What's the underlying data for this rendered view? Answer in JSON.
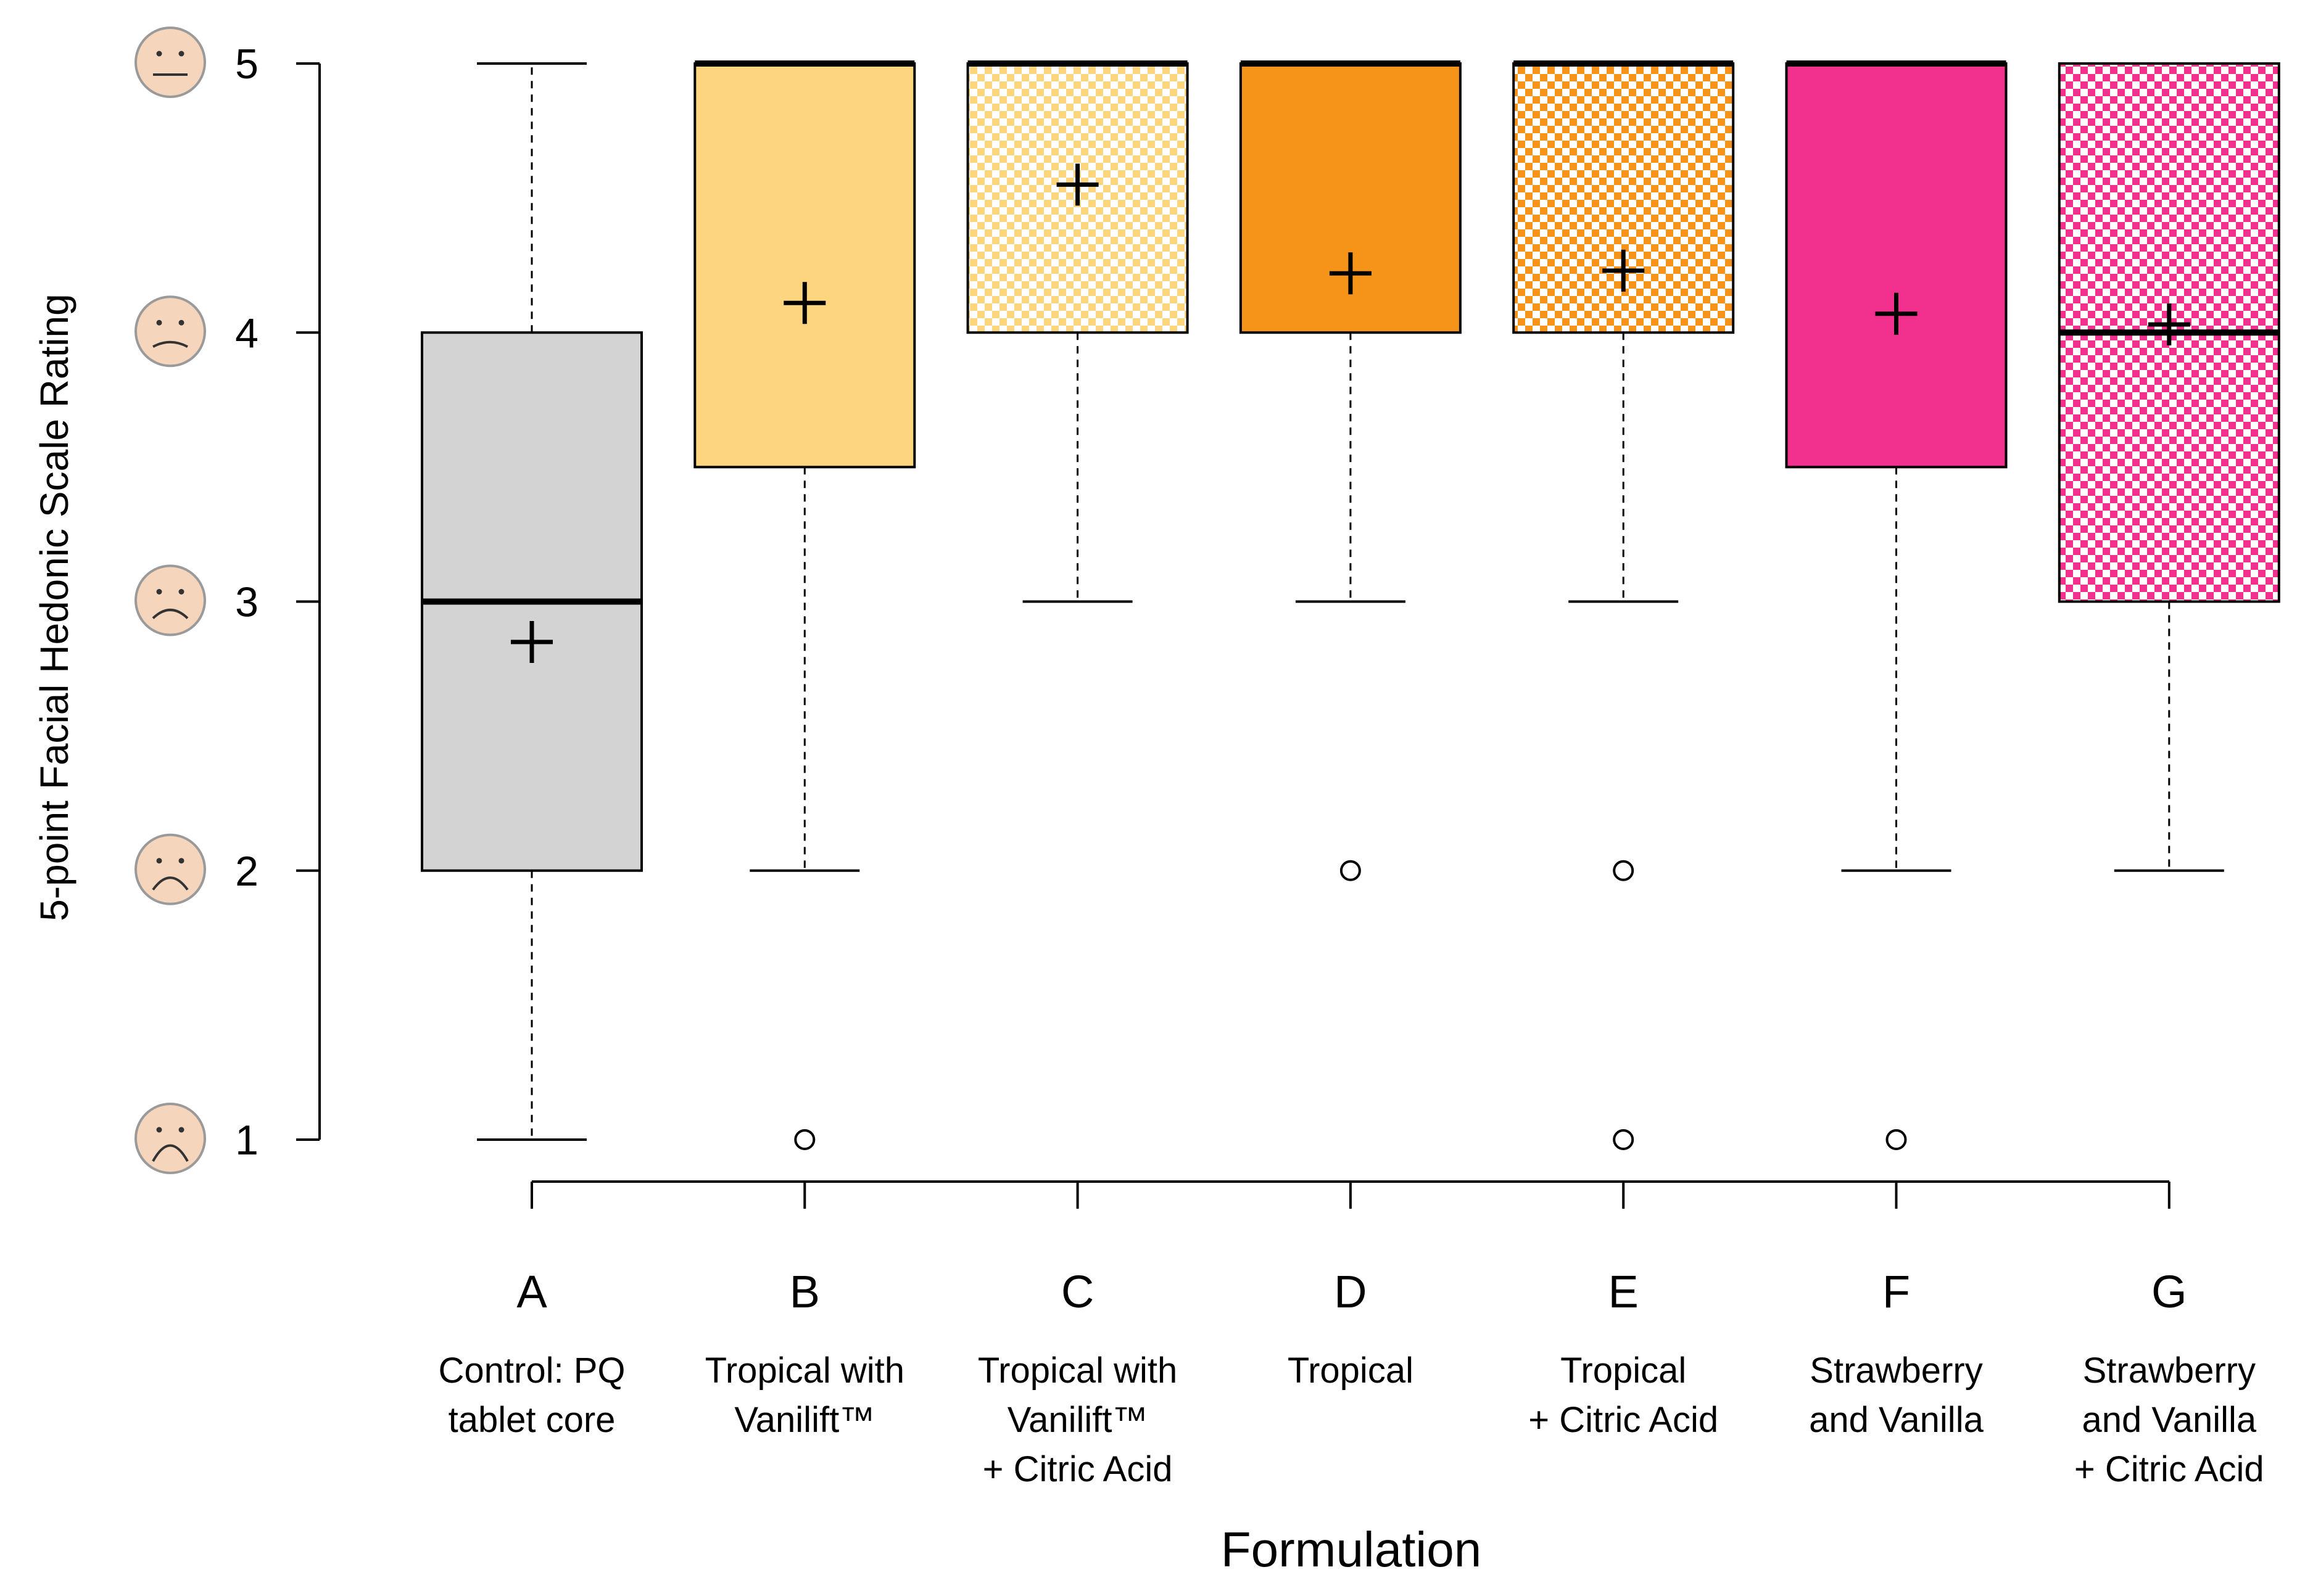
{
  "chart_data": {
    "type": "boxplot",
    "title": "",
    "xlabel": "Formulation",
    "ylabel": "5-point Facial Hedonic Scale Rating",
    "ylim": [
      1,
      5
    ],
    "yticks": [
      1,
      2,
      3,
      4,
      5
    ],
    "ytick_labels": [
      "1",
      "2",
      "3",
      "4",
      "5"
    ],
    "mean_marker": "+",
    "groups": [
      {
        "code": "A",
        "desc": [
          "Control: PQ",
          "tablet core"
        ],
        "color": "#d3d3d3",
        "pattern": "solid",
        "whisker_low": 1,
        "q1": 2,
        "median": 3,
        "q3": 4,
        "whisker_high": 5,
        "mean": 2.85,
        "outliers": []
      },
      {
        "code": "B",
        "desc": [
          "Tropical with",
          "Vanilift™"
        ],
        "color": "#fcd57e",
        "pattern": "solid",
        "whisker_low": 2,
        "q1": 3.5,
        "median": 5,
        "q3": 5,
        "whisker_high": 5,
        "mean": 4.11,
        "outliers": [
          1
        ]
      },
      {
        "code": "C",
        "desc": [
          "Tropical with",
          "Vanilift™",
          "+ Citric Acid"
        ],
        "color": "#fcd57e",
        "pattern": "checkered",
        "whisker_low": 3,
        "q1": 4,
        "median": 5,
        "q3": 5,
        "whisker_high": 5,
        "mean": 4.55,
        "outliers": []
      },
      {
        "code": "D",
        "desc": [
          "Tropical"
        ],
        "color": "#f59418",
        "pattern": "solid",
        "whisker_low": 3,
        "q1": 4,
        "median": 5,
        "q3": 5,
        "whisker_high": 5,
        "mean": 4.22,
        "outliers": [
          2
        ]
      },
      {
        "code": "E",
        "desc": [
          "Tropical",
          "+ Citric Acid"
        ],
        "color": "#f59418",
        "pattern": "checkered",
        "whisker_low": 3,
        "q1": 4,
        "median": 5,
        "q3": 5,
        "whisker_high": 5,
        "mean": 4.23,
        "outliers": [
          2,
          1
        ]
      },
      {
        "code": "F",
        "desc": [
          "Strawberry",
          "and Vanilla"
        ],
        "color": "#f2308e",
        "pattern": "solid",
        "whisker_low": 2,
        "q1": 3.5,
        "median": 5,
        "q3": 5,
        "whisker_high": 5,
        "mean": 4.07,
        "outliers": [
          1
        ]
      },
      {
        "code": "G",
        "desc": [
          "Strawberry",
          "and Vanilla",
          "+ Citric Acid"
        ],
        "color": "#f2308e",
        "pattern": "checkered",
        "whisker_low": 2,
        "q1": 3,
        "median": 4,
        "q3": 5,
        "whisker_high": 5,
        "mean": 4.03,
        "outliers": []
      }
    ],
    "face_icons": [
      "neutral-face-icon",
      "slightly-frowning-face-icon",
      "frowning-face-icon",
      "sad-face-icon",
      "very-sad-face-icon"
    ]
  }
}
